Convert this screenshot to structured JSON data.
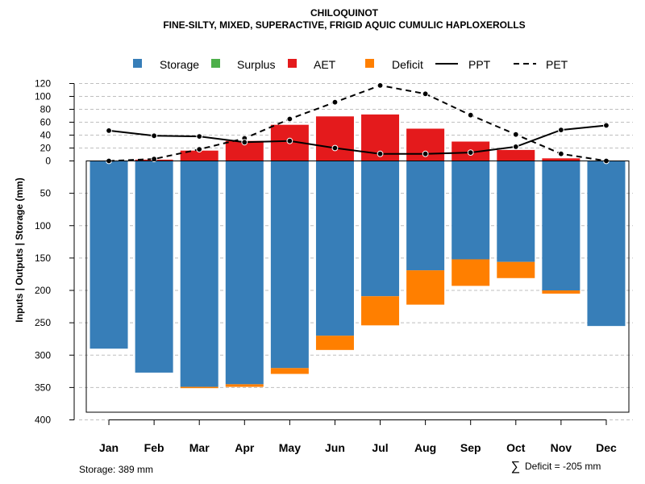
{
  "chart_data": {
    "type": "bar",
    "title": "CHILOQUINOT",
    "subtitle": "FINE-SILTY, MIXED, SUPERACTIVE, FRIGID AQUIC CUMULIC HAPLOXEROLLS",
    "ylabel": "Inputs | Outputs | Storage    (mm)",
    "categories": [
      "Jan",
      "Feb",
      "Mar",
      "Apr",
      "May",
      "Jun",
      "Jul",
      "Aug",
      "Sep",
      "Oct",
      "Nov",
      "Dec"
    ],
    "yticks_upper": [
      "120",
      "100",
      "80",
      "60",
      "40",
      "20",
      "0"
    ],
    "yticks_lower": [
      "50",
      "100",
      "150",
      "200",
      "250",
      "300",
      "350",
      "400"
    ],
    "upper_range": [
      0,
      120
    ],
    "lower_range": [
      0,
      400
    ],
    "series": [
      {
        "name": "Storage",
        "color": "#377EB8",
        "values": [
          290,
          327,
          349,
          345,
          320,
          270,
          209,
          169,
          152,
          156,
          200,
          255
        ]
      },
      {
        "name": "Surplus",
        "color": "#4DAF4A",
        "values": [
          0,
          0,
          0,
          0,
          0,
          0,
          0,
          0,
          0,
          0,
          0,
          0
        ]
      },
      {
        "name": "AET",
        "color": "#E41A1C",
        "values": [
          0,
          2,
          16,
          31,
          56,
          69,
          72,
          50,
          30,
          17,
          4,
          0
        ]
      },
      {
        "name": "Deficit",
        "color": "#FF7F00",
        "values": [
          0,
          0,
          2,
          4,
          9,
          22,
          45,
          53,
          41,
          25,
          5,
          0
        ]
      },
      {
        "name": "PPT",
        "color": "#000000",
        "style": "solid",
        "values": [
          47,
          39,
          38,
          29,
          31,
          20,
          11,
          11,
          13,
          22,
          48,
          55
        ]
      },
      {
        "name": "PET",
        "color": "#000000",
        "style": "dashed",
        "values": [
          0,
          3,
          18,
          35,
          65,
          91,
          117,
          104,
          71,
          41,
          11,
          0
        ]
      }
    ],
    "legend_position": "top",
    "notes": {
      "storage": "Storage: 389 mm",
      "deficit_symbol": "∑",
      "deficit": "Deficit = -205 mm"
    }
  }
}
